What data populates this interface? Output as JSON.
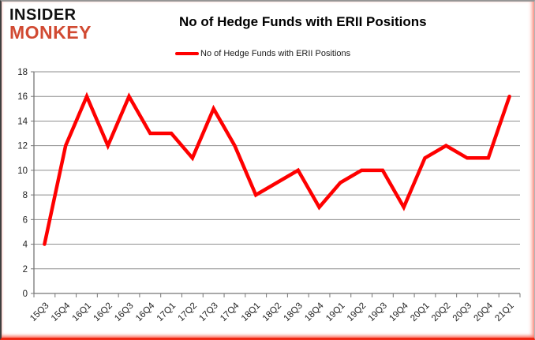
{
  "brand": {
    "line1": "INSIDER",
    "line2": "MONKEY",
    "color": "#d14a32"
  },
  "header": {
    "title": "No of Hedge Funds with ERII Positions"
  },
  "legend": {
    "label": "No of Hedge Funds with ERII Positions",
    "swatch_color": "#ff0000"
  },
  "chart_data": {
    "type": "line",
    "title": "No of Hedge Funds with ERII Positions",
    "categories": [
      "15Q3",
      "15Q4",
      "16Q1",
      "16Q2",
      "16Q3",
      "16Q4",
      "17Q1",
      "17Q2",
      "17Q3",
      "17Q4",
      "18Q1",
      "18Q2",
      "18Q3",
      "18Q4",
      "19Q1",
      "19Q2",
      "19Q3",
      "19Q4",
      "20Q1",
      "20Q2",
      "20Q3",
      "20Q4",
      "21Q1"
    ],
    "series": [
      {
        "name": "No of Hedge Funds with ERII Positions",
        "color": "#fe0000",
        "values": [
          4,
          12,
          16,
          12,
          16,
          13,
          13,
          11,
          15,
          12,
          8,
          9,
          10,
          7,
          9,
          10,
          10,
          7,
          11,
          12,
          11,
          11,
          16
        ]
      }
    ],
    "xlabel": "",
    "ylabel": "",
    "ylim": [
      0,
      18
    ],
    "ytick_step": 2,
    "grid": true,
    "legend_position": "top",
    "x_label_rotation": -45,
    "grid_color": "#8e8e8e",
    "axis_color": "#767676",
    "tick_label_color": "#1f1f1f",
    "line_width": 4.5
  }
}
